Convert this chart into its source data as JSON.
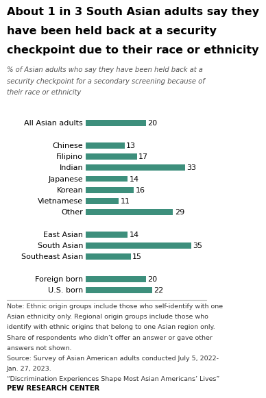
{
  "title_lines": [
    "About 1 in 3 South Asian adults say they",
    "have been held back at a security",
    "checkpoint due to their race or ethnicity"
  ],
  "subtitle_lines": [
    "% of Asian adults who say they have been held back at a",
    "security checkpoint for a secondary screening because of",
    "their race or ethnicity"
  ],
  "categories": [
    "All Asian adults",
    null,
    "Chinese",
    "Filipino",
    "Indian",
    "Japanese",
    "Korean",
    "Vietnamese",
    "Other",
    null,
    "East Asian",
    "South Asian",
    "Southeast Asian",
    null,
    "Foreign born",
    "U.S. born"
  ],
  "values": [
    20,
    null,
    13,
    17,
    33,
    14,
    16,
    11,
    29,
    null,
    14,
    35,
    15,
    null,
    20,
    22
  ],
  "bar_color": "#3d8f7c",
  "background_color": "#ffffff",
  "note_lines": [
    "Note: Ethnic origin groups include those who self-identify with one",
    "Asian ethnicity only. Regional origin groups include those who",
    "identify with ethnic origins that belong to one Asian region only.",
    "Share of respondents who didn’t offer an answer or gave other",
    "answers not shown.",
    "Source: Survey of Asian American adults conducted July 5, 2022-",
    "Jan. 27, 2023.",
    "“Discrimination Experiences Shape Most Asian Americans’ Lives”"
  ],
  "source_label": "PEW RESEARCH CENTER",
  "xlim": [
    0,
    38
  ],
  "bar_height": 0.55,
  "title_fontsize": 11.5,
  "subtitle_fontsize": 7.2,
  "label_fontsize": 8.0,
  "value_fontsize": 8.0,
  "note_fontsize": 6.8
}
